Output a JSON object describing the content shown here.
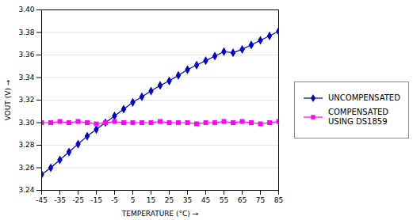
{
  "chart_data": {
    "type": "line",
    "xlabel": "TEMPERATURE (°C)",
    "ylabel": "VOUT (V)",
    "x": [
      -45,
      -40,
      -35,
      -30,
      -25,
      -20,
      -15,
      -10,
      -5,
      0,
      5,
      10,
      15,
      20,
      25,
      30,
      35,
      40,
      45,
      50,
      55,
      60,
      65,
      70,
      75,
      80,
      85
    ],
    "series": [
      {
        "name": "UNCOMPENSATED",
        "color": "#0000cc",
        "marker": "diamond",
        "values": [
          3.254,
          3.26,
          3.267,
          3.274,
          3.281,
          3.288,
          3.294,
          3.3,
          3.306,
          3.312,
          3.318,
          3.323,
          3.328,
          3.333,
          3.337,
          3.342,
          3.347,
          3.351,
          3.355,
          3.359,
          3.363,
          3.362,
          3.365,
          3.369,
          3.373,
          3.377,
          3.381
        ]
      },
      {
        "name": "COMPENSATED\nUSING DS1859",
        "color": "#ff00ff",
        "marker": "square",
        "values": [
          3.3,
          3.3,
          3.301,
          3.3,
          3.301,
          3.3,
          3.299,
          3.3,
          3.301,
          3.3,
          3.3,
          3.3,
          3.3,
          3.301,
          3.3,
          3.3,
          3.3,
          3.299,
          3.3,
          3.3,
          3.301,
          3.3,
          3.301,
          3.3,
          3.299,
          3.3,
          3.301
        ]
      }
    ],
    "xlim": [
      -45,
      85
    ],
    "ylim": [
      3.24,
      3.4
    ],
    "xticks": [
      -45,
      -35,
      -25,
      -15,
      -5,
      5,
      15,
      25,
      35,
      45,
      55,
      65,
      75,
      85
    ],
    "yticks": [
      3.24,
      3.26,
      3.28,
      {
        "value": 3.3,
        "label": "3.30"
      },
      3.32,
      3.34,
      3.36,
      3.38,
      {
        "value": 3.4,
        "label": "3.40"
      }
    ],
    "grid": true,
    "legend": "right"
  }
}
